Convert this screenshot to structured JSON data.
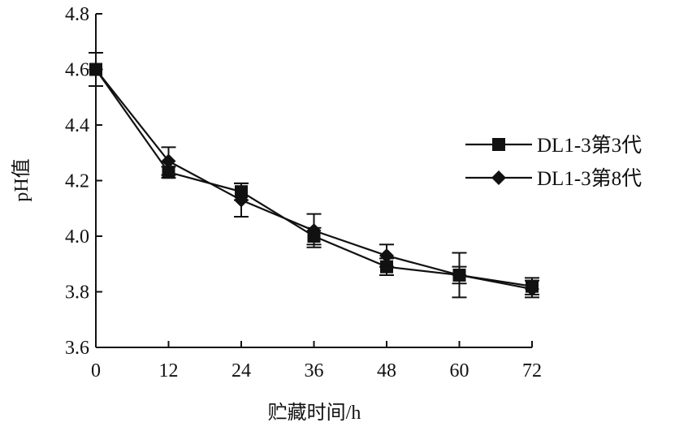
{
  "chart_data": {
    "type": "line",
    "title": "",
    "xlabel": "贮藏时间/h",
    "ylabel": "pH值",
    "x": [
      0,
      12,
      24,
      36,
      48,
      60,
      72
    ],
    "x_ticks": [
      "0",
      "12",
      "24",
      "36",
      "48",
      "60",
      "72"
    ],
    "y_ticks": [
      "3.6",
      "3.8",
      "4.0",
      "4.2",
      "4.4",
      "4.6",
      "4.8"
    ],
    "xlim": [
      0,
      72
    ],
    "ylim": [
      3.6,
      4.8
    ],
    "grid": false,
    "legend_position": "right",
    "series": [
      {
        "name": "DL1-3第3代",
        "marker": "square",
        "values": [
          4.6,
          4.23,
          4.16,
          4.0,
          3.89,
          3.86,
          3.82
        ],
        "errors": [
          0.06,
          0.02,
          0.03,
          0.03,
          0.03,
          0.03,
          0.03
        ]
      },
      {
        "name": "DL1-3第8代",
        "marker": "diamond",
        "values": [
          4.6,
          4.27,
          4.13,
          4.02,
          3.93,
          3.86,
          3.81
        ],
        "errors": [
          0.06,
          0.05,
          0.06,
          0.06,
          0.04,
          0.08,
          0.03
        ]
      }
    ],
    "line_color": "#111111"
  }
}
